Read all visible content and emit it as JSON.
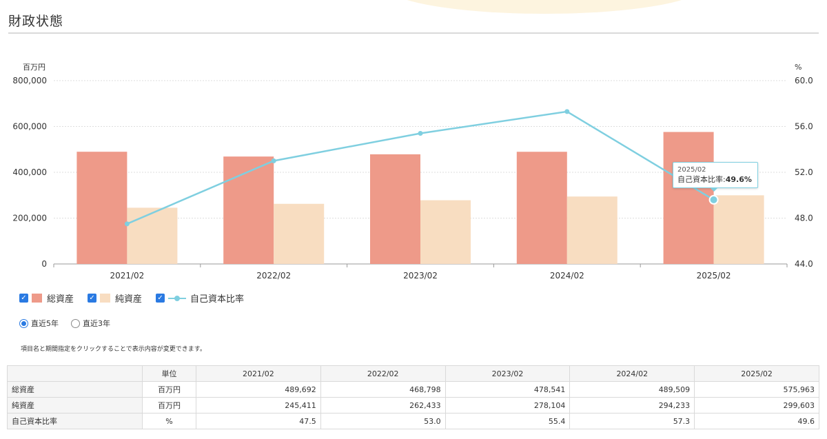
{
  "section": {
    "title": "財政状態"
  },
  "chart_data": {
    "type": "bar",
    "categories": [
      "2021/02",
      "2022/02",
      "2023/02",
      "2024/02",
      "2025/02"
    ],
    "series": [
      {
        "name": "総資産",
        "type": "bar",
        "axis": "left",
        "color": "#ee9a89",
        "values": [
          489692,
          468798,
          478541,
          489509,
          575963
        ]
      },
      {
        "name": "純資産",
        "type": "bar",
        "axis": "left",
        "color": "#f8ddc1",
        "values": [
          245411,
          262433,
          278104,
          294233,
          299603
        ]
      },
      {
        "name": "自己資本比率",
        "type": "line",
        "axis": "right",
        "color": "#7fcfe0",
        "values": [
          47.5,
          53.0,
          55.4,
          57.3,
          49.6
        ]
      }
    ],
    "ylabel_left": "百万円",
    "ylabel_right": "%",
    "ylim_left": [
      0,
      800000
    ],
    "ylim_right": [
      44.0,
      60.0
    ],
    "yticks_left": [
      "0",
      "200,000",
      "400,000",
      "600,000",
      "800,000"
    ],
    "yticks_right": [
      "44.0",
      "48.0",
      "52.0",
      "56.0",
      "60.0"
    ],
    "grid": true,
    "legend_position": "bottom-left"
  },
  "tooltip": {
    "date": "2025/02",
    "label": "自己資本比率:",
    "value": "49.6%"
  },
  "legend": [
    {
      "label": "総資産",
      "checkbox": "✓"
    },
    {
      "label": "純資産",
      "checkbox": "✓"
    },
    {
      "label": "自己資本比率",
      "checkbox": "✓"
    }
  ],
  "period": {
    "options": [
      "直近5年",
      "直近3年"
    ],
    "selected": "直近5年"
  },
  "note": "項目名と期間指定をクリックすることで表示内容が変更できます。",
  "table": {
    "unit_header": "単位",
    "columns": [
      "2021/02",
      "2022/02",
      "2023/02",
      "2024/02",
      "2025/02"
    ],
    "rows": [
      {
        "label": "総資産",
        "unit": "百万円",
        "values": [
          "489,692",
          "468,798",
          "478,541",
          "489,509",
          "575,963"
        ]
      },
      {
        "label": "純資産",
        "unit": "百万円",
        "values": [
          "245,411",
          "262,433",
          "278,104",
          "294,233",
          "299,603"
        ]
      },
      {
        "label": "自己資本比率",
        "unit": "%",
        "values": [
          "47.5",
          "53.0",
          "55.4",
          "57.3",
          "49.6"
        ]
      }
    ]
  }
}
